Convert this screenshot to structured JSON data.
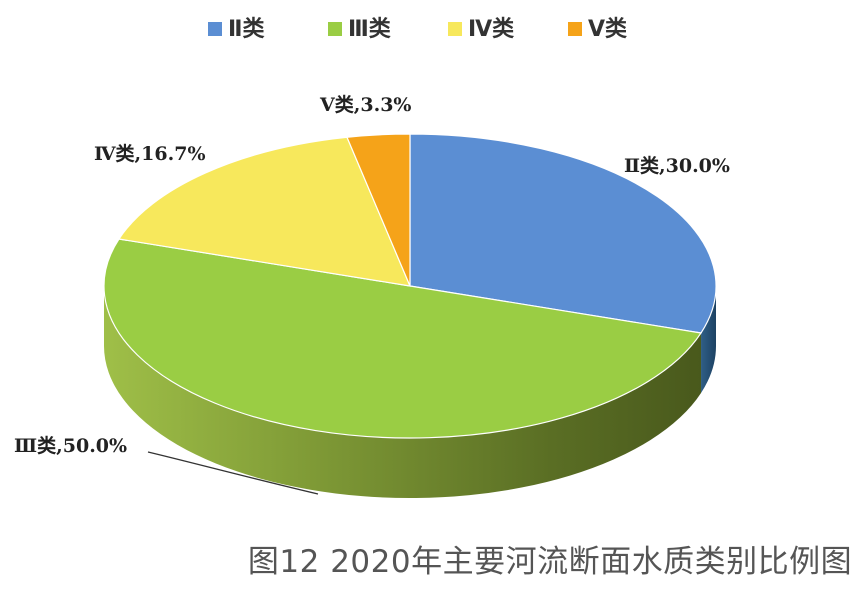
{
  "caption": "图12  2020年主要河流断面水质类别比例图",
  "chart_data": {
    "type": "pie",
    "title": "",
    "legend_position": "top",
    "series": [
      {
        "name": "Ⅱ类",
        "value": 30.0,
        "label": "Ⅱ类,30.0%",
        "color": "#5b8ed3"
      },
      {
        "name": "Ⅲ类",
        "value": 50.0,
        "label": "Ⅲ类,50.0%",
        "color": "#9acd44"
      },
      {
        "name": "Ⅳ类",
        "value": 16.7,
        "label": "Ⅳ类,16.7%",
        "color": "#f7e85c"
      },
      {
        "name": "Ⅴ类",
        "value": 3.3,
        "label": "Ⅴ类,3.3%",
        "color": "#f5a319"
      }
    ]
  }
}
